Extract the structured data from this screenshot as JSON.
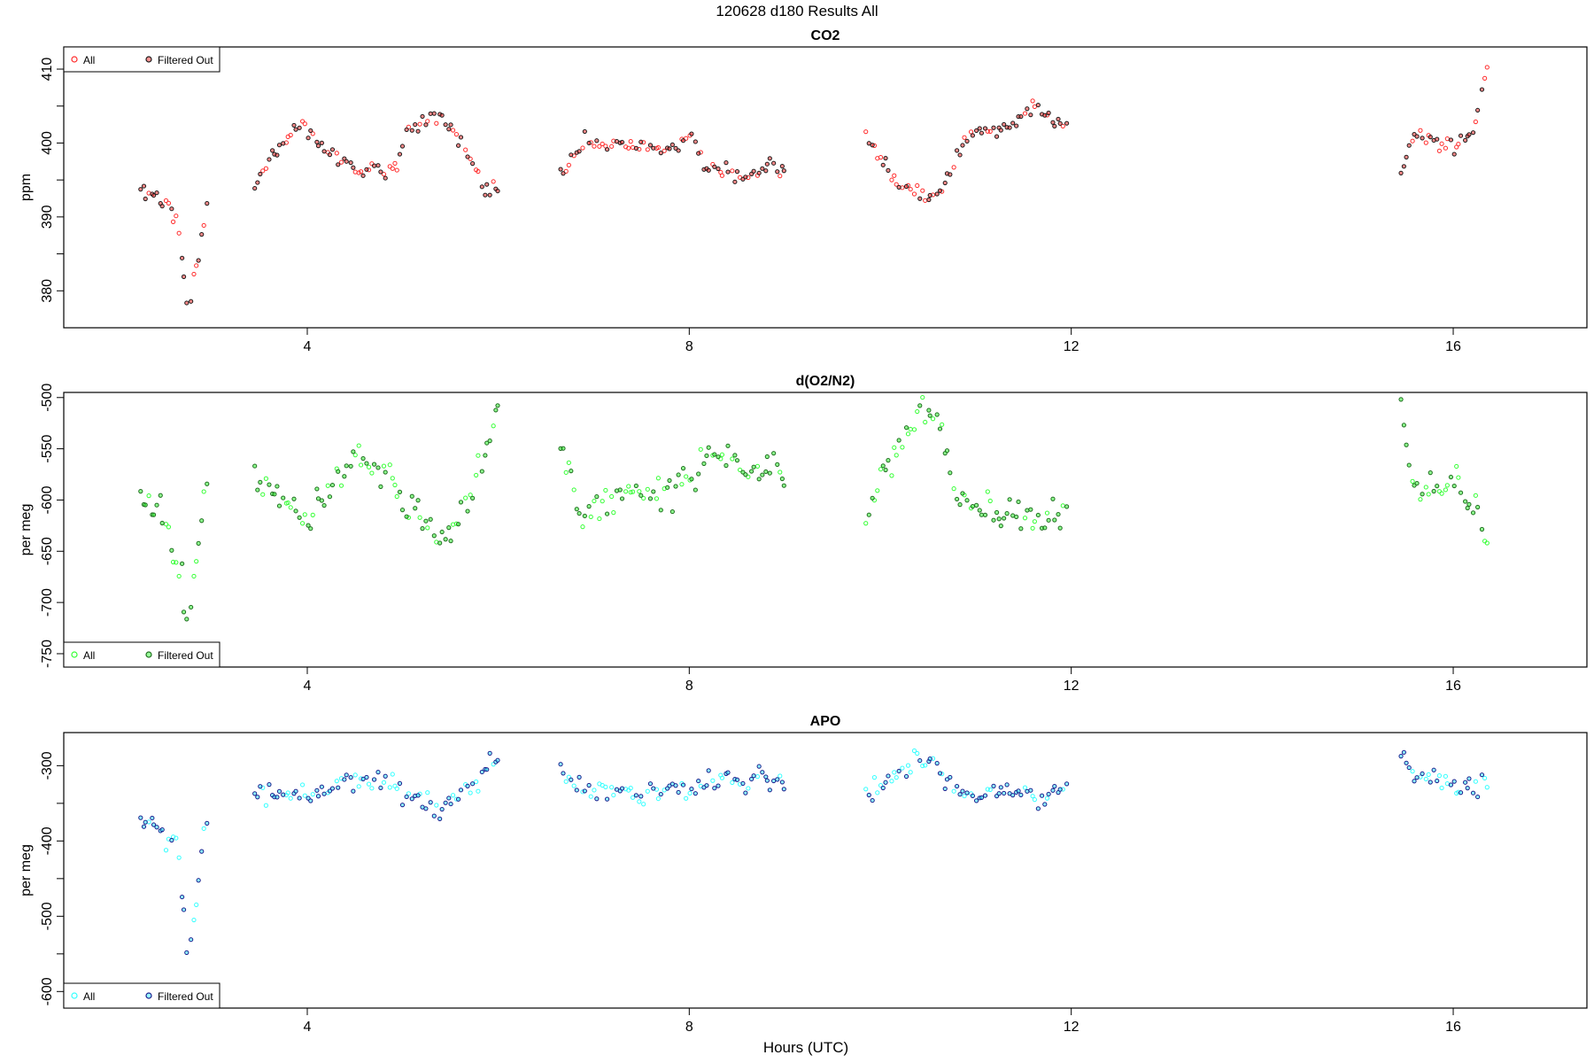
{
  "figure": {
    "title": "120628   d180   Results All",
    "xlabel": "Hours (UTC)"
  },
  "chart_data": [
    {
      "type": "scatter",
      "title": "CO2",
      "ylabel": "ppm",
      "xlim": [
        1.45,
        17.4
      ],
      "ylim": [
        375,
        413
      ],
      "xticks": [
        4,
        8,
        12,
        16
      ],
      "yticks": [
        380,
        390,
        400,
        410
      ],
      "yticks_minor": [
        385,
        395,
        405
      ],
      "legend": {
        "position": "top-left",
        "entries": [
          "All",
          "Filtered Out"
        ]
      },
      "colors": {
        "all": "#ff2a2a",
        "filtered": "#1a1a1a"
      },
      "series": [
        {
          "name": "All",
          "x": [],
          "y": []
        },
        {
          "name": "Filtered Out",
          "x": [],
          "y": []
        }
      ]
    },
    {
      "type": "scatter",
      "title": "d(O2/N2)",
      "ylabel": "per meg",
      "xlim": [
        1.45,
        17.4
      ],
      "ylim": [
        -763,
        -495
      ],
      "xticks": [
        4,
        8,
        12,
        16
      ],
      "yticks": [
        -500,
        -550,
        -600,
        -650,
        -700,
        -750
      ],
      "legend": {
        "position": "bottom-left",
        "entries": [
          "All",
          "Filtered Out"
        ]
      },
      "colors": {
        "all": "#33ff33",
        "filtered": "#1f6b1f"
      },
      "series": [
        {
          "name": "All",
          "x": [],
          "y": []
        },
        {
          "name": "Filtered Out",
          "x": [],
          "y": []
        }
      ]
    },
    {
      "type": "scatter",
      "title": "APO",
      "ylabel": "per meg",
      "xlim": [
        1.45,
        17.4
      ],
      "ylim": [
        -622,
        -256
      ],
      "xticks": [
        4,
        8,
        12,
        16
      ],
      "yticks": [
        -300,
        -400,
        -500,
        -600
      ],
      "yticks_minor": [
        -350,
        -450,
        -550
      ],
      "legend": {
        "position": "bottom-left",
        "entries": [
          "All",
          "Filtered Out"
        ]
      },
      "colors": {
        "all": "#33ffff",
        "filtered": "#1a1a8c"
      },
      "series": [
        {
          "name": "All",
          "x": [],
          "y": []
        },
        {
          "name": "Filtered Out",
          "x": [],
          "y": []
        }
      ]
    }
  ],
  "segments": [
    {
      "x": [
        2.25,
        2.5,
        2.65,
        2.75,
        2.95
      ],
      "co2": [
        393.8,
        392,
        389,
        377,
        391.5
      ],
      "o2": [
        -595,
        -618,
        -662,
        -726,
        -580
      ],
      "apo": [
        -368,
        -398,
        -405,
        -572,
        -363
      ]
    },
    {
      "x": [
        3.45,
        3.9,
        4.0,
        4.2,
        4.5,
        4.9,
        5.05,
        5.4,
        5.7,
        5.85,
        6.0
      ],
      "co2": [
        394.5,
        402.5,
        401.5,
        399,
        396.5,
        396.5,
        402,
        404,
        398,
        394,
        393
      ],
      "o2": [
        -575,
        -612,
        -622,
        -592,
        -560,
        -580,
        -605,
        -640,
        -602,
        -555,
        -505
      ],
      "apo": [
        -342,
        -335,
        -337,
        -330,
        -315,
        -325,
        -343,
        -360,
        -330,
        -305,
        -295
      ]
    },
    {
      "x": [
        6.65,
        6.9,
        7.3,
        7.8,
        8.0,
        8.2,
        8.6,
        8.9,
        9.0
      ],
      "co2": [
        395.5,
        400.5,
        399.5,
        399,
        401,
        397,
        395,
        397.5,
        396.5
      ],
      "o2": [
        -545,
        -612,
        -588,
        -592,
        -585,
        -548,
        -570,
        -568,
        -563
      ],
      "apo": [
        -305,
        -338,
        -330,
        -335,
        -333,
        -320,
        -318,
        -320,
        -320
      ]
    },
    {
      "x": [
        9.85,
        10.1,
        10.4,
        10.6,
        10.8,
        11.0,
        11.3,
        11.6,
        11.95
      ],
      "co2": [
        401,
        396,
        393,
        392.8,
        398,
        402,
        401.5,
        405,
        402
      ],
      "o2": [
        -605,
        -565,
        -512,
        -522,
        -590,
        -618,
        -612,
        -620,
        -615
      ],
      "apo": [
        -338,
        -315,
        -290,
        -300,
        -330,
        -340,
        -335,
        -340,
        -327
      ]
    },
    {
      "x": [
        15.45,
        15.6,
        15.8,
        16.0,
        16.2,
        16.35
      ],
      "co2": [
        396,
        401,
        400.5,
        399.5,
        402,
        409.5
      ],
      "o2": [
        -517,
        -585,
        -592,
        -580,
        -605,
        -635
      ],
      "apo": [
        -278,
        -320,
        -318,
        -322,
        -330,
        -318
      ]
    }
  ]
}
